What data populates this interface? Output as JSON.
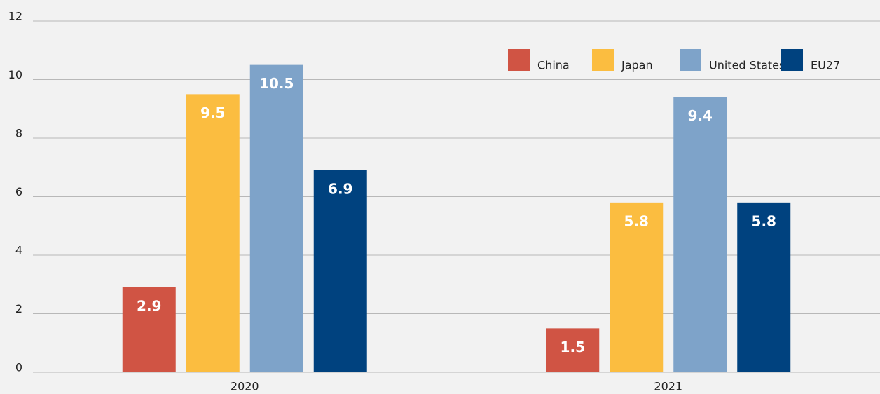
{
  "chart_data": {
    "type": "bar",
    "categories": [
      "2020",
      "2021"
    ],
    "series": [
      {
        "name": "China",
        "color": "#d05444",
        "values": [
          2.9,
          1.5
        ]
      },
      {
        "name": "Japan",
        "color": "#fbbd40",
        "values": [
          9.5,
          5.8
        ]
      },
      {
        "name": "United States",
        "color": "#7ea3c9",
        "values": [
          10.5,
          9.4
        ]
      },
      {
        "name": "EU27",
        "color": "#00427f",
        "values": [
          6.9,
          5.8
        ]
      }
    ],
    "ylim": [
      0,
      12
    ],
    "yticks": [
      0,
      2,
      4,
      6,
      8,
      10,
      12
    ],
    "grid": true,
    "legend": "top-right"
  }
}
